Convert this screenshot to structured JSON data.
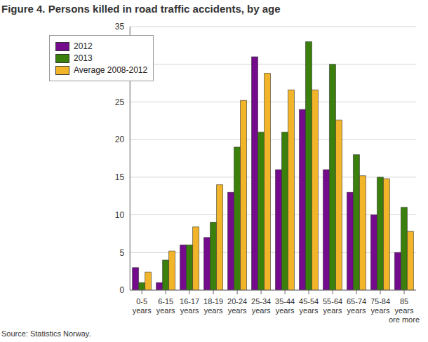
{
  "chart_data": {
    "type": "bar",
    "title": "Figure 4. Persons killed in road traffic accidents, by age",
    "source": "Source: Statistics Norway.",
    "categories": [
      "0-5 years",
      "6-15 years",
      "16-17 years",
      "18-19 years",
      "20-24 years",
      "25-34 years",
      "35-44 years",
      "45-54 years",
      "55-64 years",
      "65-74 years",
      "75-84 years",
      "85 years ore more"
    ],
    "series": [
      {
        "name": "2012",
        "color": "#730b8c",
        "values": [
          3,
          1,
          6,
          7,
          13,
          31,
          16,
          24,
          16,
          13,
          10,
          5
        ]
      },
      {
        "name": "2013",
        "color": "#3b7f0c",
        "values": [
          1,
          4,
          6,
          9,
          19,
          21,
          21,
          33,
          30,
          18,
          15,
          11
        ]
      },
      {
        "name": "Average 2008-2012",
        "color": "#f2b52a",
        "values": [
          2.4,
          5.2,
          8.4,
          14,
          25.2,
          28.8,
          26.6,
          26.6,
          22.6,
          15.2,
          14.8,
          7.8
        ]
      }
    ],
    "ylim": [
      0,
      35
    ],
    "yticks": [
      0,
      5,
      10,
      15,
      20,
      25,
      30,
      35
    ],
    "grid": true,
    "legend": "upper left"
  }
}
